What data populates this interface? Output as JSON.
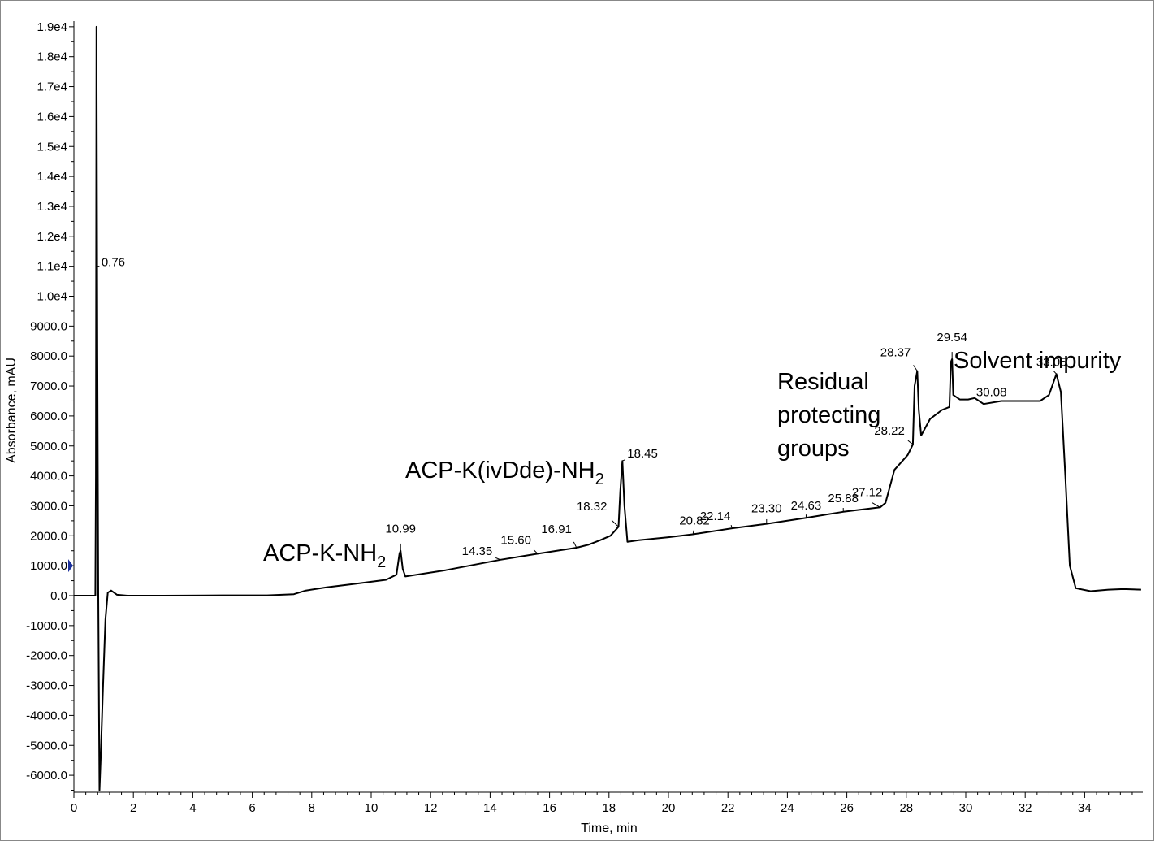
{
  "chart_data": {
    "type": "line",
    "xlabel": "Time, min",
    "ylabel": "Absorbance, mAU",
    "xlim": [
      0,
      36
    ],
    "ylim": [
      -6500,
      19000
    ],
    "x_ticks": [
      0,
      2,
      4,
      6,
      8,
      10,
      12,
      14,
      16,
      18,
      20,
      22,
      24,
      26,
      28,
      30,
      32,
      34
    ],
    "y_ticks": [
      {
        "value": 19000,
        "label": "1.9e4"
      },
      {
        "value": 18000,
        "label": "1.8e4"
      },
      {
        "value": 17000,
        "label": "1.7e4"
      },
      {
        "value": 16000,
        "label": "1.6e4"
      },
      {
        "value": 15000,
        "label": "1.5e4"
      },
      {
        "value": 14000,
        "label": "1.4e4"
      },
      {
        "value": 13000,
        "label": "1.3e4"
      },
      {
        "value": 12000,
        "label": "1.2e4"
      },
      {
        "value": 11000,
        "label": "1.1e4"
      },
      {
        "value": 10000,
        "label": "1.0e4"
      },
      {
        "value": 9000,
        "label": "9000.0"
      },
      {
        "value": 8000,
        "label": "8000.0"
      },
      {
        "value": 7000,
        "label": "7000.0"
      },
      {
        "value": 6000,
        "label": "6000.0"
      },
      {
        "value": 5000,
        "label": "5000.0"
      },
      {
        "value": 4000,
        "label": "4000.0"
      },
      {
        "value": 3000,
        "label": "3000.0"
      },
      {
        "value": 2000,
        "label": "2000.0"
      },
      {
        "value": 1000,
        "label": "1000.0"
      },
      {
        "value": 0,
        "label": "0.0"
      },
      {
        "value": -1000,
        "label": "-1000.0"
      },
      {
        "value": -2000,
        "label": "-2000.0"
      },
      {
        "value": -3000,
        "label": "-3000.0"
      },
      {
        "value": -4000,
        "label": "-4000.0"
      },
      {
        "value": -5000,
        "label": "-5000.0"
      },
      {
        "value": -6000,
        "label": "-6000.0"
      }
    ],
    "marker_y": 1000,
    "series": [
      {
        "color": "#000000",
        "points": [
          [
            0,
            0
          ],
          [
            0.72,
            0
          ],
          [
            0.74,
            4000
          ],
          [
            0.76,
            19000
          ],
          [
            0.79,
            8000
          ],
          [
            0.82,
            0
          ],
          [
            0.86,
            -6500
          ],
          [
            0.9,
            -5500
          ],
          [
            0.98,
            -3000
          ],
          [
            1.06,
            -800
          ],
          [
            1.14,
            100
          ],
          [
            1.25,
            170
          ],
          [
            1.45,
            30
          ],
          [
            1.8,
            0
          ],
          [
            3,
            0
          ],
          [
            5,
            10
          ],
          [
            6.5,
            10
          ],
          [
            7.4,
            50
          ],
          [
            7.8,
            170
          ],
          [
            8.5,
            280
          ],
          [
            9.5,
            400
          ],
          [
            10.5,
            530
          ],
          [
            10.85,
            700
          ],
          [
            10.95,
            1400
          ],
          [
            10.99,
            1500
          ],
          [
            11.06,
            900
          ],
          [
            11.15,
            640
          ],
          [
            12.5,
            850
          ],
          [
            14.35,
            1200
          ],
          [
            15.6,
            1400
          ],
          [
            16.91,
            1600
          ],
          [
            17.3,
            1700
          ],
          [
            17.7,
            1850
          ],
          [
            18.05,
            2000
          ],
          [
            18.32,
            2300
          ],
          [
            18.38,
            3500
          ],
          [
            18.45,
            4500
          ],
          [
            18.52,
            3000
          ],
          [
            18.62,
            1800
          ],
          [
            19,
            1850
          ],
          [
            20,
            1950
          ],
          [
            20.82,
            2050
          ],
          [
            22.14,
            2250
          ],
          [
            23.3,
            2400
          ],
          [
            24.63,
            2600
          ],
          [
            25.88,
            2800
          ],
          [
            27.12,
            2950
          ],
          [
            27.3,
            3100
          ],
          [
            27.6,
            4200
          ],
          [
            28.05,
            4700
          ],
          [
            28.22,
            5050
          ],
          [
            28.28,
            7000
          ],
          [
            28.37,
            7500
          ],
          [
            28.42,
            6200
          ],
          [
            28.5,
            5350
          ],
          [
            28.8,
            5900
          ],
          [
            29.2,
            6200
          ],
          [
            29.45,
            6300
          ],
          [
            29.5,
            7800
          ],
          [
            29.54,
            7900
          ],
          [
            29.58,
            6700
          ],
          [
            29.8,
            6550
          ],
          [
            30.08,
            6550
          ],
          [
            30.3,
            6600
          ],
          [
            30.6,
            6400
          ],
          [
            31.2,
            6500
          ],
          [
            32.5,
            6500
          ],
          [
            32.8,
            6700
          ],
          [
            33.05,
            7400
          ],
          [
            33.2,
            6800
          ],
          [
            33.35,
            4000
          ],
          [
            33.5,
            1000
          ],
          [
            33.7,
            250
          ],
          [
            34.2,
            150
          ],
          [
            34.8,
            200
          ],
          [
            35.3,
            220
          ],
          [
            35.9,
            200
          ]
        ]
      }
    ],
    "peak_labels": [
      {
        "label": "0.76",
        "x": 0.76,
        "y": 11000
      },
      {
        "label": "10.99",
        "x": 10.99,
        "y": 1500
      },
      {
        "label": "14.35",
        "x": 14.35,
        "y": 1200
      },
      {
        "label": "15.60",
        "x": 15.6,
        "y": 1400
      },
      {
        "label": "16.91",
        "x": 16.91,
        "y": 1600
      },
      {
        "label": "18.32",
        "x": 18.32,
        "y": 2300
      },
      {
        "label": "18.45",
        "x": 18.45,
        "y": 4500
      },
      {
        "label": "20.82",
        "x": 20.82,
        "y": 2050
      },
      {
        "label": "22.14",
        "x": 22.14,
        "y": 2250
      },
      {
        "label": "23.30",
        "x": 23.3,
        "y": 2400
      },
      {
        "label": "24.63",
        "x": 24.63,
        "y": 2600
      },
      {
        "label": "25.88",
        "x": 25.88,
        "y": 2800
      },
      {
        "label": "27.12",
        "x": 27.12,
        "y": 2950
      },
      {
        "label": "28.22",
        "x": 28.22,
        "y": 5050
      },
      {
        "label": "28.37",
        "x": 28.37,
        "y": 7500
      },
      {
        "label": "29.54",
        "x": 29.54,
        "y": 7900
      },
      {
        "label": "30.08",
        "x": 30.08,
        "y": 6550
      },
      {
        "label": "33.05",
        "x": 33.05,
        "y": 7400
      }
    ],
    "annotations": [
      {
        "text": "ACP-K-NH",
        "sub": "2"
      },
      {
        "text": "ACP-K(ivDde)-NH",
        "sub": "2"
      },
      {
        "lines": [
          "Residual",
          "protecting",
          "groups"
        ]
      },
      {
        "text": "Solvent impurity"
      }
    ]
  }
}
